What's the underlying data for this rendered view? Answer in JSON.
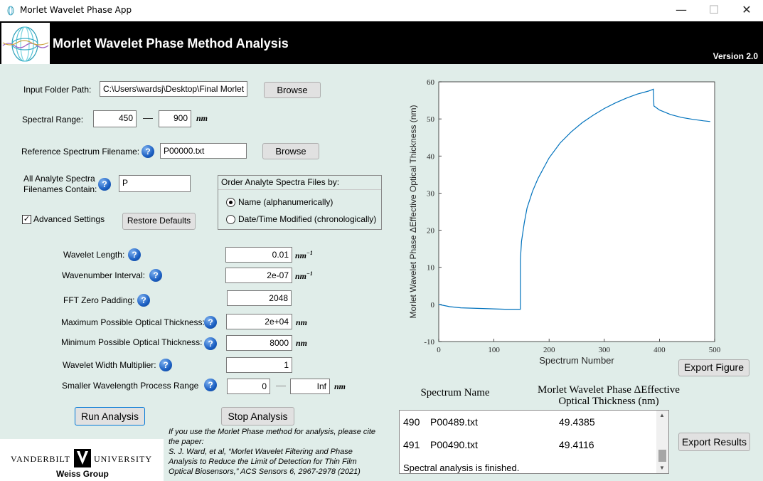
{
  "window": {
    "title": "Morlet Wavelet Phase App",
    "minimize": "—",
    "maximize": "☐",
    "close": "✕"
  },
  "header": {
    "title": "Morlet Wavelet Phase Method Analysis",
    "version": "Version 2.0"
  },
  "form": {
    "input_folder_label": "Input Folder Path:",
    "input_folder_value": "C:\\Users\\wardsj\\Desktop\\Final Morlet",
    "browse_label": "Browse",
    "spectral_range_label": "Spectral Range:",
    "spectral_min": "450",
    "spectral_max": "900",
    "range_dash": "—",
    "nm": "nm",
    "reference_label": "Reference Spectrum Filename:",
    "reference_value": "P00000.txt",
    "analyte_label_line1": "All Analyte Spectra",
    "analyte_label_line2": "Filenames Contain:",
    "analyte_value": "P",
    "order_header": "Order Analyte Spectra Files by:",
    "order_name": "Name (alphanumerically)",
    "order_date": "Date/Time Modified (chronologically)",
    "order_selected": "name",
    "advanced_label": "Advanced Settings",
    "advanced_checked": true,
    "restore_label": "Restore Defaults",
    "help_glyph": "?",
    "wavelet_length_label": "Wavelet Length:",
    "wavelet_length_value": "0.01",
    "nm_inv": "nm",
    "sup": "−1",
    "wavenumber_label": "Wavenumber Interval:",
    "wavenumber_value": "2e-07",
    "fft_label": "FFT Zero Padding:",
    "fft_value": "2048",
    "max_thick_label": "Maximum Possible Optical Thickness:",
    "max_thick_value": "2e+04",
    "min_thick_label": "Minimum Possible Optical Thickness:",
    "min_thick_value": "8000",
    "width_mult_label": "Wavelet Width Multiplier:",
    "width_mult_value": "1",
    "smaller_label": "Smaller Wavelength Process Range",
    "smaller_min": "0",
    "smaller_max": "Inf",
    "run_label": "Run Analysis",
    "stop_label": "Stop Analysis"
  },
  "citation": {
    "line1": "If you use the Morlet Phase method for analysis, please cite",
    "line2": "the paper:",
    "line3": "S. J. Ward, et al, “Morlet Wavelet Filtering and Phase",
    "line4": "Analysis to Reduce the Limit of Detection for Thin Film",
    "line5": "Optical Biosensors,” ACS Sensors 6, 2967-2978 (2021)"
  },
  "branding": {
    "left": "VANDERBILT",
    "mark": "V",
    "right": "UNIVERSITY",
    "group": "Weiss Group"
  },
  "chart_data": {
    "type": "line",
    "xlabel": "Spectrum Number",
    "ylabel": "Morlet  Wavelet  Phase  ΔEffective  Optical  Thickness  (nm)",
    "xlim": [
      0,
      500
    ],
    "ylim": [
      -10,
      60
    ],
    "xticks": [
      "0",
      "100",
      "200",
      "300",
      "400",
      "500"
    ],
    "yticks": [
      "-10",
      "0",
      "10",
      "20",
      "30",
      "40",
      "50",
      "60"
    ],
    "line_color": "#0072bd",
    "series": [
      {
        "x": [
          0,
          20,
          40,
          60,
          80,
          100,
          120,
          148,
          148,
          150,
          155,
          160,
          170,
          180,
          200,
          220,
          240,
          260,
          280,
          300,
          320,
          340,
          360,
          380,
          389,
          390,
          400,
          420,
          440,
          460,
          480,
          492
        ],
        "y": [
          0,
          -0.6,
          -0.9,
          -1.0,
          -1.1,
          -1.2,
          -1.3,
          -1.3,
          12,
          17,
          22,
          26,
          30.5,
          34,
          39.5,
          43.5,
          46.5,
          49,
          51,
          52.8,
          54.3,
          55.6,
          56.7,
          57.5,
          58,
          53.5,
          52.4,
          51.2,
          50.4,
          49.9,
          49.5,
          49.3
        ]
      }
    ]
  },
  "export_figure_label": "Export Figure",
  "export_results_label": "Export Results",
  "results": {
    "col_name": "Spectrum Name",
    "col_value_line1": "Morlet Wavelet Phase ΔEffective",
    "col_value_line2": "Optical Thickness (nm)",
    "rows": [
      {
        "index": "490",
        "name": "P00489.txt",
        "value": "49.4385"
      },
      {
        "index": "491",
        "name": "P00490.txt",
        "value": "49.4116"
      }
    ],
    "status": "Spectral analysis is finished.",
    "scroll_up": "▲",
    "scroll_down": "▼"
  }
}
